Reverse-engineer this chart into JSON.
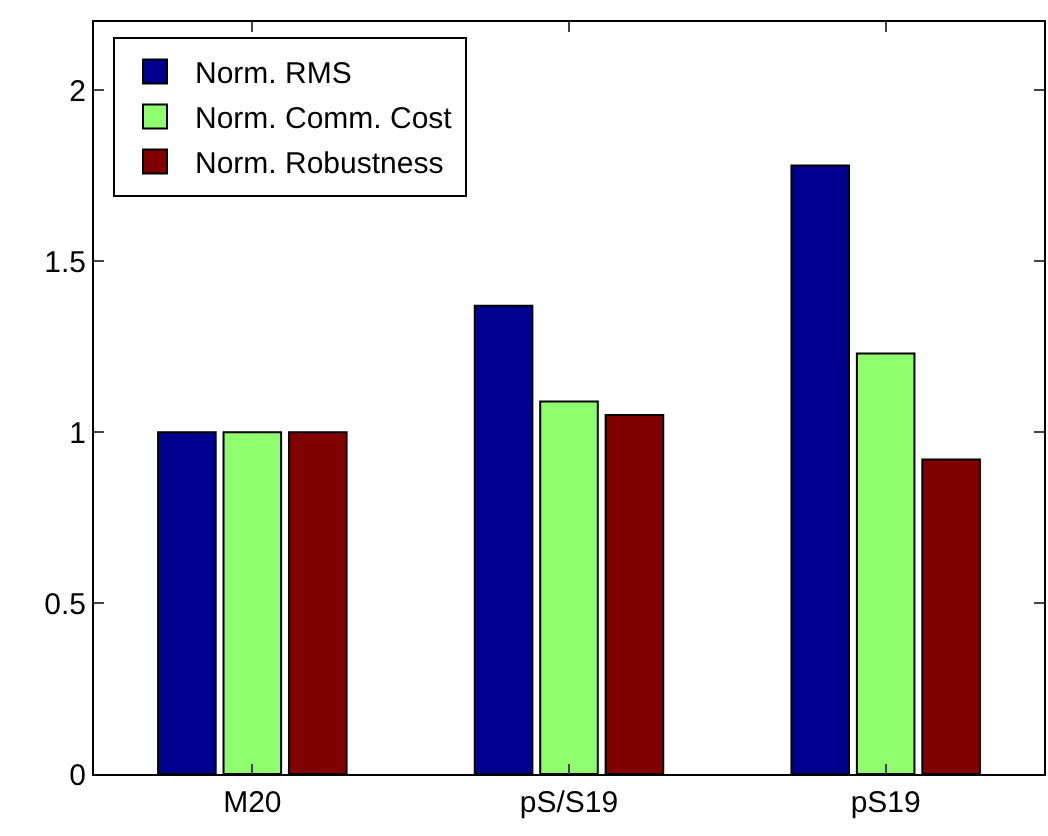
{
  "chart_data": {
    "type": "bar",
    "categories": [
      "M20",
      "pS/S19",
      "pS19"
    ],
    "series": [
      {
        "name": "Norm. RMS",
        "color": "#00008f",
        "values": [
          1,
          1.37,
          1.78
        ]
      },
      {
        "name": "Norm. Comm. Cost",
        "color": "#8fff70",
        "values": [
          1,
          1.09,
          1.23
        ]
      },
      {
        "name": "Norm. Robustness",
        "color": "#800000",
        "values": [
          1,
          1.05,
          0.92
        ]
      }
    ],
    "ylim": [
      0,
      2.2
    ],
    "yticks": [
      0,
      0.5,
      1,
      1.5,
      2
    ],
    "grid": false,
    "legend": "top left"
  }
}
